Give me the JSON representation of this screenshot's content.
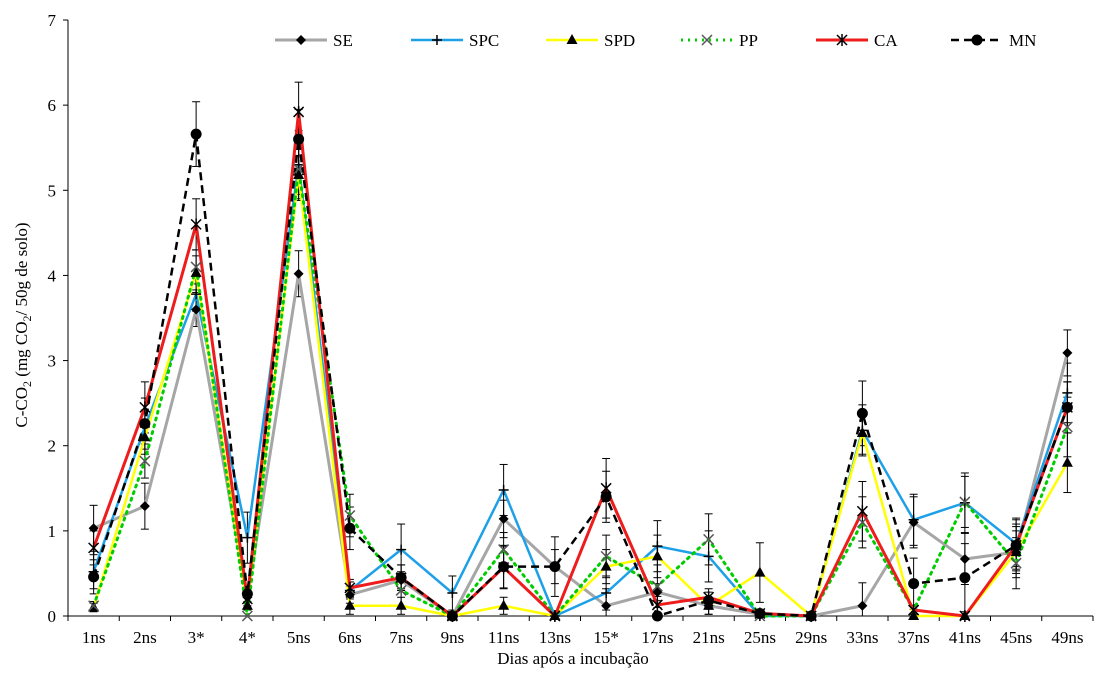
{
  "chart_data": {
    "type": "line",
    "title": "",
    "xlabel": "Dias após a incubação",
    "ylabel_parts": [
      "C-CO",
      "2",
      " (mg CO",
      "2",
      "/ 50g de solo)"
    ],
    "ylim": [
      0,
      7
    ],
    "yticks": [
      0,
      1,
      2,
      3,
      4,
      5,
      6,
      7
    ],
    "grid": false,
    "legend_position": "top",
    "categories": [
      "1ns",
      "2ns",
      "3*",
      "4*",
      "5ns",
      "6ns",
      "7ns",
      "9ns",
      "11ns",
      "13ns",
      "15*",
      "17ns",
      "21ns",
      "25ns",
      "29ns",
      "33ns",
      "37ns",
      "41ns",
      "45ns",
      "49ns"
    ],
    "series": [
      {
        "name": "SE",
        "color": "#a6a6a6",
        "dash": "solid",
        "marker": "diamond",
        "values": [
          1.03,
          1.29,
          3.6,
          0.22,
          4.02,
          0.25,
          0.42,
          0.0,
          1.14,
          0.58,
          0.12,
          0.28,
          0.12,
          0.02,
          0.0,
          0.12,
          1.1,
          0.67,
          0.75,
          3.09
        ],
        "errors": [
          0.27,
          0.27,
          0.2,
          0.1,
          0.27,
          0.1,
          0.1,
          0.05,
          0.22,
          0.2,
          0.2,
          0.1,
          0.1,
          0.02,
          0.02,
          0.27,
          0.3,
          0.3,
          0.3,
          0.27
        ]
      },
      {
        "name": "SPC",
        "color": "#1ea0e8",
        "dash": "solid",
        "marker": "plus",
        "values": [
          0.52,
          2.22,
          3.78,
          0.92,
          5.3,
          0.3,
          0.78,
          0.27,
          1.48,
          0.0,
          0.27,
          0.82,
          0.7,
          0.0,
          0.0,
          2.18,
          1.13,
          1.33,
          0.85,
          2.62
        ],
        "errors": [
          0.2,
          0.2,
          0.2,
          0.3,
          0.4,
          0.1,
          0.3,
          0.2,
          0.3,
          0.02,
          0.2,
          0.3,
          0.3,
          0.02,
          0.02,
          0.3,
          0.3,
          0.35,
          0.3,
          0.35
        ]
      },
      {
        "name": "SPD",
        "color": "#ffff00",
        "dash": "solid",
        "marker": "triangle",
        "values": [
          0.1,
          2.1,
          4.03,
          0.12,
          5.18,
          0.12,
          0.12,
          0.0,
          0.12,
          0.0,
          0.58,
          0.7,
          0.12,
          0.51,
          0.0,
          2.15,
          0.0,
          0.0,
          0.75,
          1.8
        ],
        "errors": [
          0.05,
          0.2,
          0.2,
          0.05,
          0.3,
          0.1,
          0.1,
          0.02,
          0.1,
          0.02,
          0.2,
          0.25,
          0.1,
          0.35,
          0.02,
          0.25,
          0.02,
          0.02,
          0.25,
          0.35
        ]
      },
      {
        "name": "PP",
        "color": "#00cc00",
        "dash": "dotted",
        "marker": "x",
        "values": [
          0.12,
          1.82,
          4.1,
          0.0,
          5.25,
          1.18,
          0.3,
          0.0,
          0.78,
          0.0,
          0.7,
          0.35,
          0.9,
          0.0,
          0.0,
          1.1,
          0.07,
          1.34,
          0.62,
          2.22
        ],
        "errors": [
          0.05,
          0.2,
          0.2,
          0.02,
          0.3,
          0.25,
          0.2,
          0.02,
          0.2,
          0.02,
          0.25,
          0.25,
          0.3,
          0.02,
          0.02,
          0.3,
          0.05,
          0.3,
          0.3,
          0.35
        ]
      },
      {
        "name": "CA",
        "color": "#ee1c1c",
        "dash": "solid",
        "marker": "asterisk",
        "values": [
          0.8,
          2.45,
          4.6,
          0.2,
          5.92,
          0.33,
          0.45,
          0.0,
          0.57,
          0.0,
          1.5,
          0.13,
          0.22,
          0.03,
          0.0,
          1.23,
          0.07,
          0.0,
          0.83,
          2.45
        ],
        "errors": [
          0.2,
          0.3,
          0.3,
          0.1,
          0.35,
          0.1,
          0.15,
          0.02,
          0.25,
          0.02,
          0.35,
          0.1,
          0.1,
          0.02,
          0.02,
          0.35,
          0.05,
          0.02,
          0.25,
          0.3
        ]
      },
      {
        "name": "MN",
        "color": "#000000",
        "dash": "dashed",
        "marker": "circle",
        "values": [
          0.46,
          2.26,
          5.66,
          0.26,
          5.6,
          1.03,
          0.45,
          0.0,
          0.58,
          0.58,
          1.4,
          0.0,
          0.18,
          0.03,
          0.0,
          2.38,
          0.38,
          0.45,
          0.83,
          2.45
        ],
        "errors": [
          0.2,
          0.3,
          0.38,
          0.1,
          0.35,
          0.25,
          0.15,
          0.02,
          0.25,
          0.35,
          0.3,
          0.02,
          0.1,
          0.02,
          0.02,
          0.38,
          0.3,
          0.4,
          0.3,
          0.3
        ]
      }
    ]
  }
}
